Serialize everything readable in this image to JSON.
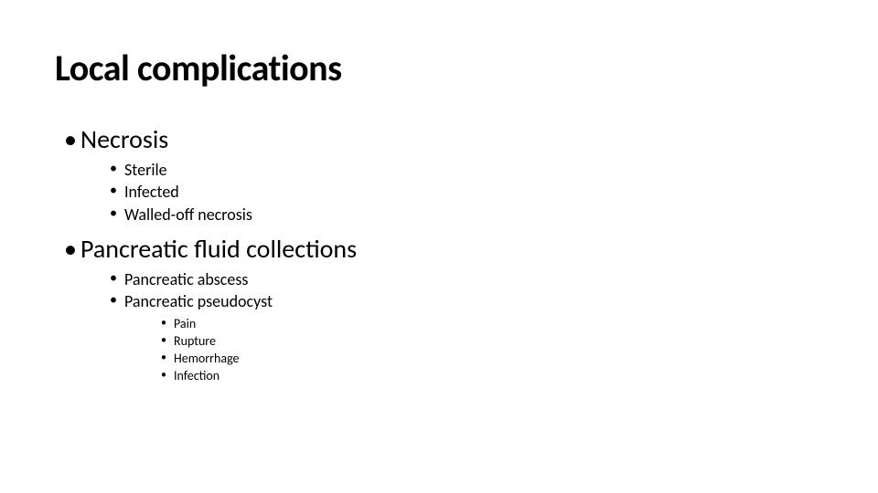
{
  "slide": {
    "title": "Local complications",
    "background_color": "#ffffff",
    "text_color": "#000000",
    "title_fontsize": 40,
    "level1_fontsize": 28,
    "level2_fontsize": 18,
    "level3_fontsize": 14,
    "font_family": "Calibri",
    "bullets": [
      {
        "text": "Necrosis",
        "children": [
          {
            "text": "Sterile"
          },
          {
            "text": "Infected"
          },
          {
            "text": "Walled-off necrosis"
          }
        ]
      },
      {
        "text": "Pancreatic fluid collections",
        "children": [
          {
            "text": "Pancreatic abscess"
          },
          {
            "text": "Pancreatic pseudocyst",
            "children": [
              {
                "text": "Pain"
              },
              {
                "text": "Rupture"
              },
              {
                "text": "Hemorrhage"
              },
              {
                "text": "Infection"
              }
            ]
          }
        ]
      }
    ]
  }
}
